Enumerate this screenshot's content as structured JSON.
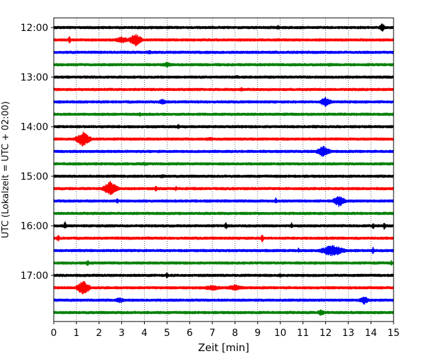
{
  "chart_data": {
    "type": "line",
    "title": "",
    "xlabel": "Zeit  [min]",
    "ylabel": "UTC (Lokalzeit = UTC + 02:00)",
    "xlim": [
      0,
      15
    ],
    "xticks": [
      0,
      1,
      2,
      3,
      4,
      5,
      6,
      7,
      8,
      9,
      10,
      11,
      12,
      13,
      14,
      15
    ],
    "grid": "vertical dotted lines at every minute",
    "ytick_labels": [
      "12:00",
      "13:00",
      "14:00",
      "15:00",
      "16:00",
      "17:00"
    ],
    "colors": [
      "#000000",
      "#ff0000",
      "#0000ff",
      "#008000"
    ],
    "trace_interval_minutes": 15,
    "traces": [
      {
        "start": "12:00",
        "color": "#000000",
        "amplitude": 1.0,
        "events": [
          {
            "t": 14.5,
            "amp": 3.0,
            "dur": 0.15
          },
          {
            "t": 9.9,
            "amp": 1.8,
            "dur": 0.1
          },
          {
            "t": 4.3,
            "amp": 1.5,
            "dur": 0.1
          }
        ]
      },
      {
        "start": "12:15",
        "color": "#ff0000",
        "amplitude": 1.0,
        "events": [
          {
            "t": 0.7,
            "amp": 3.0,
            "dur": 0.05
          },
          {
            "t": 3.0,
            "amp": 2.5,
            "dur": 0.5
          },
          {
            "t": 3.6,
            "amp": 4.5,
            "dur": 0.4
          }
        ]
      },
      {
        "start": "12:30",
        "color": "#0000ff",
        "amplitude": 1.0,
        "events": [
          {
            "t": 4.2,
            "amp": 1.5,
            "dur": 0.3
          },
          {
            "t": 9.8,
            "amp": 1.2,
            "dur": 0.2
          }
        ]
      },
      {
        "start": "12:45",
        "color": "#008000",
        "amplitude": 1.0,
        "events": [
          {
            "t": 5.0,
            "amp": 2.0,
            "dur": 0.4
          },
          {
            "t": 12.2,
            "amp": 1.5,
            "dur": 0.3
          }
        ]
      },
      {
        "start": "13:00",
        "color": "#000000",
        "amplitude": 1.0,
        "events": [
          {
            "t": 8.1,
            "amp": 1.5,
            "dur": 0.2
          }
        ]
      },
      {
        "start": "13:15",
        "color": "#ff0000",
        "amplitude": 1.0,
        "events": [
          {
            "t": 8.3,
            "amp": 1.5,
            "dur": 0.2
          }
        ]
      },
      {
        "start": "13:30",
        "color": "#0000ff",
        "amplitude": 1.0,
        "events": [
          {
            "t": 4.8,
            "amp": 2.0,
            "dur": 0.3
          },
          {
            "t": 12.0,
            "amp": 3.5,
            "dur": 0.35
          }
        ]
      },
      {
        "start": "13:45",
        "color": "#008000",
        "amplitude": 1.0,
        "events": [
          {
            "t": 3.8,
            "amp": 2.0,
            "dur": 0.05
          }
        ]
      },
      {
        "start": "14:00",
        "color": "#000000",
        "amplitude": 1.0,
        "events": [
          {
            "t": 5.5,
            "amp": 2.0,
            "dur": 0.05
          },
          {
            "t": 11.5,
            "amp": 1.5,
            "dur": 0.2
          }
        ]
      },
      {
        "start": "14:15",
        "color": "#ff0000",
        "amplitude": 1.0,
        "events": [
          {
            "t": 1.3,
            "amp": 5.0,
            "dur": 0.45
          },
          {
            "t": 6.9,
            "amp": 1.5,
            "dur": 0.5
          }
        ]
      },
      {
        "start": "14:30",
        "color": "#0000ff",
        "amplitude": 1.0,
        "events": [
          {
            "t": 11.9,
            "amp": 4.0,
            "dur": 0.4
          }
        ]
      },
      {
        "start": "14:45",
        "color": "#008000",
        "amplitude": 1.0,
        "events": [
          {
            "t": 4.0,
            "amp": 1.5,
            "dur": 0.3
          }
        ]
      },
      {
        "start": "15:00",
        "color": "#000000",
        "amplitude": 1.0,
        "events": [
          {
            "t": 4.8,
            "amp": 1.5,
            "dur": 0.3
          }
        ]
      },
      {
        "start": "15:15",
        "color": "#ff0000",
        "amplitude": 1.0,
        "events": [
          {
            "t": 2.5,
            "amp": 5.0,
            "dur": 0.45
          },
          {
            "t": 4.5,
            "amp": 2.5,
            "dur": 0.05
          },
          {
            "t": 5.4,
            "amp": 2.0,
            "dur": 0.05
          }
        ]
      },
      {
        "start": "15:30",
        "color": "#0000ff",
        "amplitude": 1.0,
        "events": [
          {
            "t": 2.8,
            "amp": 2.0,
            "dur": 0.05
          },
          {
            "t": 9.8,
            "amp": 2.5,
            "dur": 0.05
          },
          {
            "t": 12.6,
            "amp": 4.0,
            "dur": 0.4
          }
        ]
      },
      {
        "start": "15:45",
        "color": "#008000",
        "amplitude": 1.0,
        "events": [
          {
            "t": 8.0,
            "amp": 1.2,
            "dur": 0.3
          }
        ]
      },
      {
        "start": "16:00",
        "color": "#000000",
        "amplitude": 1.0,
        "events": [
          {
            "t": 0.5,
            "amp": 3.0,
            "dur": 0.05
          },
          {
            "t": 7.6,
            "amp": 3.0,
            "dur": 0.05
          },
          {
            "t": 10.5,
            "amp": 2.5,
            "dur": 0.05
          },
          {
            "t": 14.1,
            "amp": 2.5,
            "dur": 0.05
          },
          {
            "t": 14.6,
            "amp": 3.0,
            "dur": 0.05
          }
        ]
      },
      {
        "start": "16:15",
        "color": "#ff0000",
        "amplitude": 1.0,
        "events": [
          {
            "t": 0.2,
            "amp": 2.5,
            "dur": 0.1
          },
          {
            "t": 9.2,
            "amp": 3.5,
            "dur": 0.05
          }
        ]
      },
      {
        "start": "16:30",
        "color": "#0000ff",
        "amplitude": 1.0,
        "events": [
          {
            "t": 12.3,
            "amp": 4.0,
            "dur": 0.8
          },
          {
            "t": 14.1,
            "amp": 3.0,
            "dur": 0.05
          },
          {
            "t": 10.8,
            "amp": 2.0,
            "dur": 0.05
          }
        ]
      },
      {
        "start": "16:45",
        "color": "#008000",
        "amplitude": 1.0,
        "events": [
          {
            "t": 1.5,
            "amp": 2.5,
            "dur": 0.05
          },
          {
            "t": 14.9,
            "amp": 2.0,
            "dur": 0.05
          }
        ]
      },
      {
        "start": "17:00",
        "color": "#000000",
        "amplitude": 1.0,
        "events": [
          {
            "t": 5.0,
            "amp": 2.5,
            "dur": 0.05
          },
          {
            "t": 10.0,
            "amp": 2.0,
            "dur": 0.05
          }
        ]
      },
      {
        "start": "17:15",
        "color": "#ff0000",
        "amplitude": 1.0,
        "events": [
          {
            "t": 1.3,
            "amp": 5.0,
            "dur": 0.4
          },
          {
            "t": 7.0,
            "amp": 2.0,
            "dur": 0.8
          },
          {
            "t": 8.0,
            "amp": 2.5,
            "dur": 0.5
          }
        ]
      },
      {
        "start": "17:30",
        "color": "#0000ff",
        "amplitude": 1.0,
        "events": [
          {
            "t": 2.9,
            "amp": 2.0,
            "dur": 0.4
          },
          {
            "t": 13.7,
            "amp": 3.0,
            "dur": 0.3
          }
        ]
      },
      {
        "start": "17:45",
        "color": "#008000",
        "amplitude": 1.0,
        "events": [
          {
            "t": 11.8,
            "amp": 2.5,
            "dur": 0.2
          }
        ]
      }
    ]
  }
}
